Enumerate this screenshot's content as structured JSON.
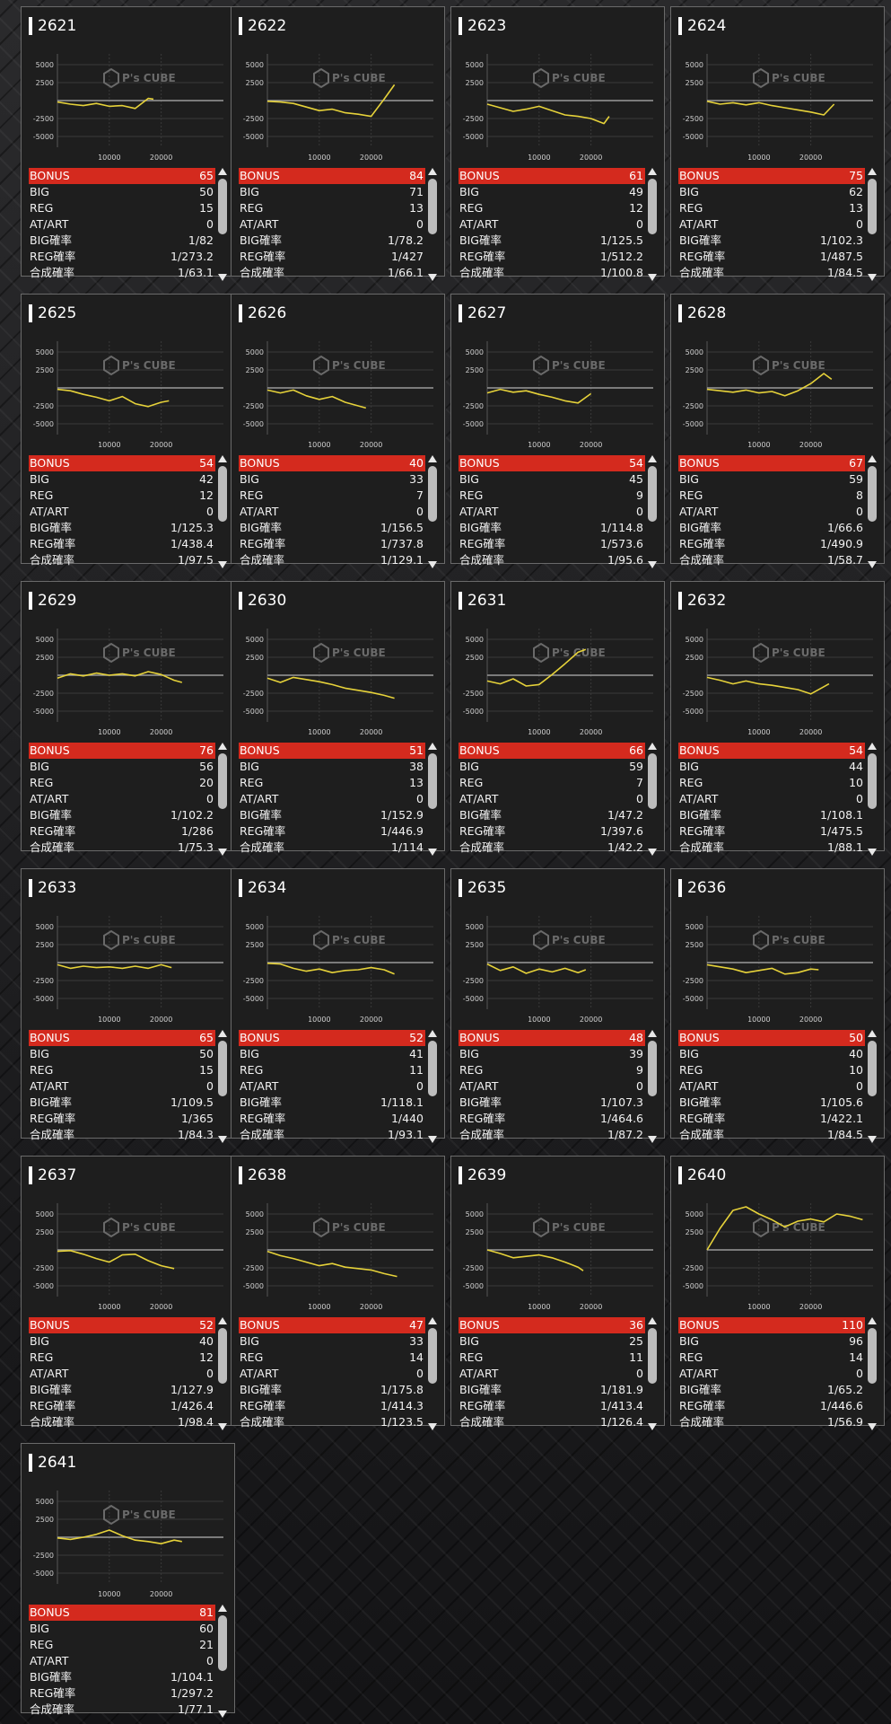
{
  "labels": {
    "bonus": "BONUS",
    "big": "BIG",
    "reg": "REG",
    "atart": "AT/ART",
    "big_rate": "BIG確率",
    "reg_rate": "REG確率",
    "total_rate": "合成確率"
  },
  "chart_labels": {
    "y_ticks": [
      "5000",
      "2500",
      "-2500",
      "-5000"
    ],
    "x_ticks": [
      "10000",
      "20000"
    ],
    "watermark": "P's CUBE"
  },
  "colors": {
    "bonus_bar": "#d42a1e",
    "graph_line": "#e6d23a",
    "baseline": "#9a9a9a"
  },
  "machines": [
    {
      "id": "2621",
      "bonus": "65",
      "big": "50",
      "reg": "15",
      "atart": "0",
      "big_rate": "1/82",
      "reg_rate": "1/273.2",
      "total_rate": "1/63.1"
    },
    {
      "id": "2622",
      "bonus": "84",
      "big": "71",
      "reg": "13",
      "atart": "0",
      "big_rate": "1/78.2",
      "reg_rate": "1/427",
      "total_rate": "1/66.1"
    },
    {
      "id": "2623",
      "bonus": "61",
      "big": "49",
      "reg": "12",
      "atart": "0",
      "big_rate": "1/125.5",
      "reg_rate": "1/512.2",
      "total_rate": "1/100.8"
    },
    {
      "id": "2624",
      "bonus": "75",
      "big": "62",
      "reg": "13",
      "atart": "0",
      "big_rate": "1/102.3",
      "reg_rate": "1/487.5",
      "total_rate": "1/84.5"
    },
    {
      "id": "2625",
      "bonus": "54",
      "big": "42",
      "reg": "12",
      "atart": "0",
      "big_rate": "1/125.3",
      "reg_rate": "1/438.4",
      "total_rate": "1/97.5"
    },
    {
      "id": "2626",
      "bonus": "40",
      "big": "33",
      "reg": "7",
      "atart": "0",
      "big_rate": "1/156.5",
      "reg_rate": "1/737.8",
      "total_rate": "1/129.1"
    },
    {
      "id": "2627",
      "bonus": "54",
      "big": "45",
      "reg": "9",
      "atart": "0",
      "big_rate": "1/114.8",
      "reg_rate": "1/573.6",
      "total_rate": "1/95.6"
    },
    {
      "id": "2628",
      "bonus": "67",
      "big": "59",
      "reg": "8",
      "atart": "0",
      "big_rate": "1/66.6",
      "reg_rate": "1/490.9",
      "total_rate": "1/58.7"
    },
    {
      "id": "2629",
      "bonus": "76",
      "big": "56",
      "reg": "20",
      "atart": "0",
      "big_rate": "1/102.2",
      "reg_rate": "1/286",
      "total_rate": "1/75.3"
    },
    {
      "id": "2630",
      "bonus": "51",
      "big": "38",
      "reg": "13",
      "atart": "0",
      "big_rate": "1/152.9",
      "reg_rate": "1/446.9",
      "total_rate": "1/114"
    },
    {
      "id": "2631",
      "bonus": "66",
      "big": "59",
      "reg": "7",
      "atart": "0",
      "big_rate": "1/47.2",
      "reg_rate": "1/397.6",
      "total_rate": "1/42.2"
    },
    {
      "id": "2632",
      "bonus": "54",
      "big": "44",
      "reg": "10",
      "atart": "0",
      "big_rate": "1/108.1",
      "reg_rate": "1/475.5",
      "total_rate": "1/88.1"
    },
    {
      "id": "2633",
      "bonus": "65",
      "big": "50",
      "reg": "15",
      "atart": "0",
      "big_rate": "1/109.5",
      "reg_rate": "1/365",
      "total_rate": "1/84.3"
    },
    {
      "id": "2634",
      "bonus": "52",
      "big": "41",
      "reg": "11",
      "atart": "0",
      "big_rate": "1/118.1",
      "reg_rate": "1/440",
      "total_rate": "1/93.1"
    },
    {
      "id": "2635",
      "bonus": "48",
      "big": "39",
      "reg": "9",
      "atart": "0",
      "big_rate": "1/107.3",
      "reg_rate": "1/464.6",
      "total_rate": "1/87.2"
    },
    {
      "id": "2636",
      "bonus": "50",
      "big": "40",
      "reg": "10",
      "atart": "0",
      "big_rate": "1/105.6",
      "reg_rate": "1/422.1",
      "total_rate": "1/84.5"
    },
    {
      "id": "2637",
      "bonus": "52",
      "big": "40",
      "reg": "12",
      "atart": "0",
      "big_rate": "1/127.9",
      "reg_rate": "1/426.4",
      "total_rate": "1/98.4"
    },
    {
      "id": "2638",
      "bonus": "47",
      "big": "33",
      "reg": "14",
      "atart": "0",
      "big_rate": "1/175.8",
      "reg_rate": "1/414.3",
      "total_rate": "1/123.5"
    },
    {
      "id": "2639",
      "bonus": "36",
      "big": "25",
      "reg": "11",
      "atart": "0",
      "big_rate": "1/181.9",
      "reg_rate": "1/413.4",
      "total_rate": "1/126.4"
    },
    {
      "id": "2640",
      "bonus": "110",
      "big": "96",
      "reg": "14",
      "atart": "0",
      "big_rate": "1/65.2",
      "reg_rate": "1/446.6",
      "total_rate": "1/56.9"
    },
    {
      "id": "2641",
      "bonus": "81",
      "big": "60",
      "reg": "21",
      "atart": "0",
      "big_rate": "1/104.1",
      "reg_rate": "1/297.2",
      "total_rate": "1/77.1"
    }
  ],
  "chart_data": [
    {
      "type": "line",
      "ylim": [
        -5000,
        5000
      ],
      "x": [
        0,
        2500,
        5000,
        7500,
        10000,
        12500,
        15000,
        17500,
        18500
      ],
      "y": [
        -200,
        -500,
        -700,
        -400,
        -800,
        -700,
        -1100,
        300,
        200
      ]
    },
    {
      "type": "line",
      "ylim": [
        -5000,
        5000
      ],
      "x": [
        0,
        2500,
        5000,
        7500,
        10000,
        12500,
        15000,
        17500,
        20000,
        22500,
        24500
      ],
      "y": [
        -100,
        -200,
        -400,
        -900,
        -1400,
        -1200,
        -1700,
        -1900,
        -2200,
        200,
        2200
      ]
    },
    {
      "type": "line",
      "ylim": [
        -5000,
        5000
      ],
      "x": [
        0,
        2500,
        5000,
        7500,
        10000,
        12500,
        15000,
        17500,
        20000,
        22500,
        23500
      ],
      "y": [
        -500,
        -1000,
        -1500,
        -1200,
        -800,
        -1400,
        -2000,
        -2200,
        -2500,
        -3200,
        -2200
      ]
    },
    {
      "type": "line",
      "ylim": [
        -5000,
        5000
      ],
      "x": [
        0,
        2500,
        5000,
        7500,
        10000,
        12500,
        15000,
        17500,
        20000,
        22500,
        24500
      ],
      "y": [
        -100,
        -500,
        -300,
        -600,
        -300,
        -700,
        -1000,
        -1300,
        -1600,
        -2000,
        -500
      ]
    },
    {
      "type": "line",
      "ylim": [
        -5000,
        5000
      ],
      "x": [
        0,
        2500,
        5000,
        7500,
        10000,
        12500,
        15000,
        17500,
        20000,
        21500
      ],
      "y": [
        -200,
        -400,
        -900,
        -1300,
        -1800,
        -1200,
        -2200,
        -2600,
        -2000,
        -1800
      ]
    },
    {
      "type": "line",
      "ylim": [
        -5000,
        5000
      ],
      "x": [
        0,
        2500,
        5000,
        7500,
        10000,
        12500,
        15000,
        17500,
        19000
      ],
      "y": [
        -300,
        -700,
        -300,
        -1100,
        -1600,
        -1200,
        -2000,
        -2500,
        -2800
      ]
    },
    {
      "type": "line",
      "ylim": [
        -5000,
        5000
      ],
      "x": [
        0,
        2500,
        5000,
        7500,
        10000,
        12500,
        15000,
        17500,
        20000
      ],
      "y": [
        -700,
        -200,
        -600,
        -400,
        -900,
        -1300,
        -1800,
        -2100,
        -800
      ]
    },
    {
      "type": "line",
      "ylim": [
        -5000,
        5000
      ],
      "x": [
        0,
        2500,
        5000,
        7500,
        10000,
        12500,
        15000,
        17500,
        20000,
        22500,
        24000
      ],
      "y": [
        -200,
        -400,
        -600,
        -300,
        -700,
        -500,
        -1100,
        -400,
        600,
        2000,
        1200
      ]
    },
    {
      "type": "line",
      "ylim": [
        -5000,
        5000
      ],
      "x": [
        0,
        2500,
        5000,
        7500,
        10000,
        12500,
        15000,
        17500,
        20000,
        22500,
        24000
      ],
      "y": [
        -400,
        200,
        -100,
        300,
        0,
        200,
        -100,
        500,
        100,
        -700,
        -1000
      ]
    },
    {
      "type": "line",
      "ylim": [
        -5000,
        5000
      ],
      "x": [
        0,
        2500,
        5000,
        7500,
        10000,
        12500,
        15000,
        17500,
        20000,
        22500,
        24500
      ],
      "y": [
        -400,
        -1000,
        -300,
        -600,
        -900,
        -1300,
        -1800,
        -2100,
        -2400,
        -2800,
        -3200
      ]
    },
    {
      "type": "line",
      "ylim": [
        -5000,
        5000
      ],
      "x": [
        0,
        2500,
        5000,
        7500,
        10000,
        12500,
        15000,
        17500,
        19000
      ],
      "y": [
        -800,
        -1200,
        -500,
        -1500,
        -1300,
        100,
        1600,
        3200,
        3600
      ]
    },
    {
      "type": "line",
      "ylim": [
        -5000,
        5000
      ],
      "x": [
        0,
        2500,
        5000,
        7500,
        10000,
        12500,
        15000,
        17500,
        20000,
        22500,
        23500
      ],
      "y": [
        -300,
        -700,
        -1200,
        -800,
        -1200,
        -1400,
        -1700,
        -2000,
        -2600,
        -1600,
        -1200
      ]
    },
    {
      "type": "line",
      "ylim": [
        -5000,
        5000
      ],
      "x": [
        0,
        2500,
        5000,
        7500,
        10000,
        12500,
        15000,
        17500,
        20000,
        22000
      ],
      "y": [
        -300,
        -800,
        -500,
        -700,
        -600,
        -800,
        -500,
        -800,
        -300,
        -700
      ]
    },
    {
      "type": "line",
      "ylim": [
        -5000,
        5000
      ],
      "x": [
        0,
        2500,
        5000,
        7500,
        10000,
        12500,
        15000,
        17500,
        20000,
        22500,
        24500
      ],
      "y": [
        -100,
        -200,
        -800,
        -1200,
        -900,
        -1400,
        -1100,
        -1000,
        -700,
        -1000,
        -1600
      ]
    },
    {
      "type": "line",
      "ylim": [
        -5000,
        5000
      ],
      "x": [
        0,
        2500,
        5000,
        7500,
        10000,
        12500,
        15000,
        17500,
        19000
      ],
      "y": [
        -200,
        -1100,
        -600,
        -1500,
        -900,
        -1300,
        -800,
        -1400,
        -1000
      ]
    },
    {
      "type": "line",
      "ylim": [
        -5000,
        5000
      ],
      "x": [
        0,
        2500,
        5000,
        7500,
        10000,
        12500,
        15000,
        17500,
        20000,
        21500
      ],
      "y": [
        -300,
        -600,
        -900,
        -1400,
        -1100,
        -800,
        -1600,
        -1400,
        -900,
        -1000
      ]
    },
    {
      "type": "line",
      "ylim": [
        -5000,
        5000
      ],
      "x": [
        0,
        2500,
        5000,
        7500,
        10000,
        12500,
        15000,
        17500,
        20000,
        22500
      ],
      "y": [
        -200,
        -100,
        -600,
        -1200,
        -1700,
        -700,
        -600,
        -1500,
        -2200,
        -2600
      ]
    },
    {
      "type": "line",
      "ylim": [
        -5000,
        5000
      ],
      "x": [
        0,
        2500,
        5000,
        7500,
        10000,
        12500,
        15000,
        17500,
        20000,
        22500,
        25000
      ],
      "y": [
        -200,
        -800,
        -1200,
        -1700,
        -2200,
        -1900,
        -2400,
        -2600,
        -2800,
        -3300,
        -3700
      ]
    },
    {
      "type": "line",
      "ylim": [
        -5000,
        5000
      ],
      "x": [
        0,
        2500,
        5000,
        7500,
        10000,
        12500,
        15000,
        17500,
        18500
      ],
      "y": [
        0,
        -500,
        -1100,
        -900,
        -700,
        -1100,
        -1700,
        -2400,
        -2900
      ]
    },
    {
      "type": "line",
      "ylim": [
        -5000,
        5000
      ],
      "x": [
        0,
        2500,
        5000,
        7500,
        10000,
        12500,
        15000,
        17500,
        20000,
        22500,
        25000,
        27500,
        30000
      ],
      "y": [
        0,
        3000,
        5500,
        6000,
        5000,
        4200,
        3200,
        4000,
        4300,
        3900,
        5000,
        4700,
        4200
      ]
    },
    {
      "type": "line",
      "ylim": [
        -5000,
        5000
      ],
      "x": [
        0,
        2500,
        5000,
        7500,
        10000,
        12500,
        15000,
        17500,
        20000,
        22500,
        24000
      ],
      "y": [
        -100,
        -300,
        0,
        400,
        1000,
        200,
        -400,
        -600,
        -900,
        -400,
        -600
      ]
    }
  ]
}
